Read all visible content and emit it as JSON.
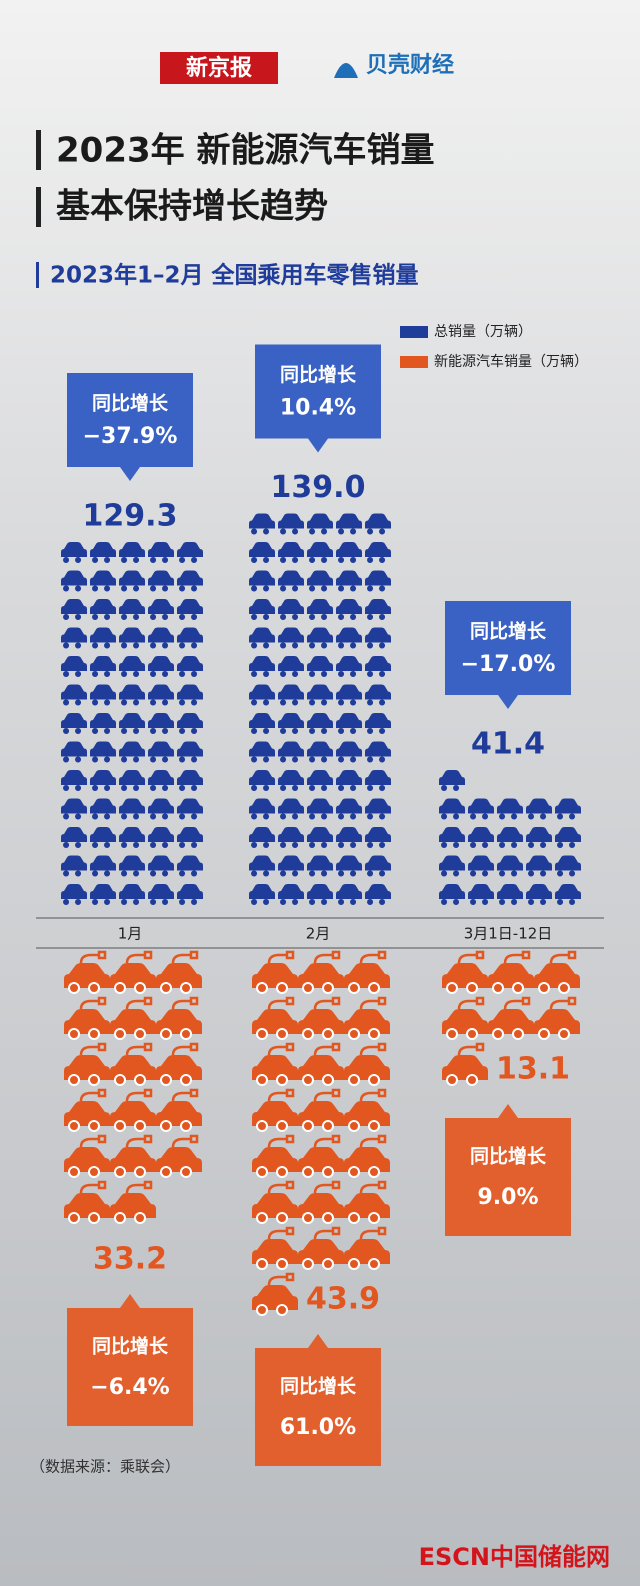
{
  "header": {
    "brand": "新京报",
    "partner": "贝壳财经"
  },
  "chart_data": {
    "type": "pictogram",
    "title_lines": [
      "2023年 新能源汽车销量",
      "基本保持增长趋势"
    ],
    "subtitle": "2023年1–2月 全国乘用车零售销量",
    "categories": [
      "1月",
      "2月",
      "3月1日-12日"
    ],
    "series": [
      {
        "name": "总销量（万辆）",
        "color": "#1f3c9a",
        "values": [
          129.3,
          139.0,
          41.4
        ],
        "value_labels": [
          "129.3",
          "139.0",
          "41.4"
        ],
        "yoy_title": "同比增长",
        "yoy": [
          -37.9,
          10.4,
          -17.0
        ],
        "yoy_labels": [
          "−37.9%",
          "10.4%",
          "−17.0%"
        ]
      },
      {
        "name": "新能源汽车销量（万辆）",
        "color": "#e2561f",
        "values": [
          33.2,
          43.9,
          13.1
        ],
        "value_labels": [
          "33.2",
          "43.9",
          "13.1"
        ],
        "yoy_title": "同比增长",
        "yoy": [
          -6.4,
          61.0,
          9.0
        ],
        "yoy_labels": [
          "−6.4%",
          "61.0%",
          "9.0%"
        ]
      }
    ],
    "source": "（数据来源：乘联会）"
  },
  "footer": {
    "logo": "ESCN中国储能网"
  }
}
